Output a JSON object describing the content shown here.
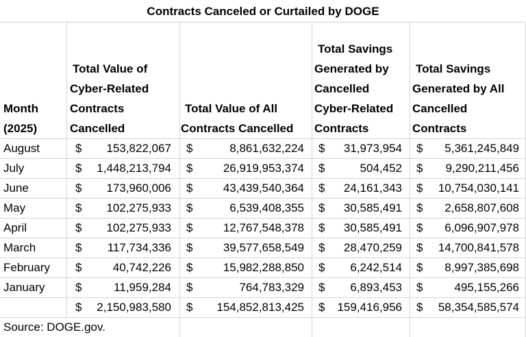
{
  "title": "Contracts Canceled or Curtailed by DOGE",
  "headers": {
    "month": [
      "Month",
      "(2025)"
    ],
    "cyber_value": [
      "Total Value of",
      "Cyber-Related",
      "Contracts",
      "Cancelled"
    ],
    "all_value": [
      "Total Value of All",
      "Contracts Cancelled"
    ],
    "cyber_savings": [
      "Total Savings",
      "Generated by",
      "Cancelled",
      "Cyber-Related",
      "Contracts"
    ],
    "all_savings": [
      "Total Savings",
      "Generated by All",
      "Cancelled",
      "Contracts"
    ]
  },
  "rows": [
    {
      "month": "August",
      "cyber_value": "153,822,067",
      "all_value": "8,861,632,224",
      "cyber_savings": "31,973,954",
      "all_savings": "5,361,245,849"
    },
    {
      "month": "July",
      "cyber_value": "1,448,213,794",
      "all_value": "26,919,953,374",
      "cyber_savings": "504,452",
      "all_savings": "9,290,211,456"
    },
    {
      "month": "June",
      "cyber_value": "173,960,006",
      "all_value": "43,439,540,364",
      "cyber_savings": "24,161,343",
      "all_savings": "10,754,030,141"
    },
    {
      "month": "May",
      "cyber_value": "102,275,933",
      "all_value": "6,539,408,355",
      "cyber_savings": "30,585,491",
      "all_savings": "2,658,807,608"
    },
    {
      "month": "April",
      "cyber_value": "102,275,933",
      "all_value": "12,767,548,378",
      "cyber_savings": "30,585,491",
      "all_savings": "6,096,907,978"
    },
    {
      "month": "March",
      "cyber_value": "117,734,336",
      "all_value": "39,577,658,549",
      "cyber_savings": "28,470,259",
      "all_savings": "14,700,841,578"
    },
    {
      "month": "February",
      "cyber_value": "40,742,226",
      "all_value": "15,982,288,850",
      "cyber_savings": "6,242,514",
      "all_savings": "8,997,385,698"
    },
    {
      "month": "January",
      "cyber_value": "11,959,284",
      "all_value": "764,783,329",
      "cyber_savings": "6,893,453",
      "all_savings": "495,155,266"
    }
  ],
  "totals": {
    "cyber_value": "2,150,983,580",
    "all_value": "154,852,813,425",
    "cyber_savings": "159,416,956",
    "all_savings": "58,354,585,574"
  },
  "currency_symbol": "$",
  "source": "Source: DOGE.gov."
}
